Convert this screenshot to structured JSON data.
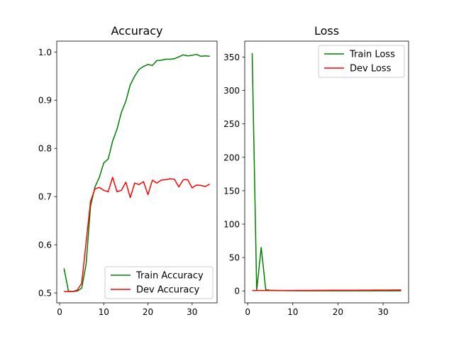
{
  "colors": {
    "train": "#008000",
    "dev": "#ff0000",
    "axis": "#000000",
    "legend_border": "#cccccc"
  },
  "chart_data": [
    {
      "type": "line",
      "title": "Accuracy",
      "xlabel": "",
      "ylabel": "",
      "xlim": [
        -0.65,
        35.65
      ],
      "ylim": [
        0.4795,
        1.0225
      ],
      "xticks": [
        0,
        10,
        20,
        30
      ],
      "yticks": [
        0.5,
        0.6,
        0.7,
        0.8,
        0.9,
        1.0
      ],
      "ytick_labels": [
        "0.5",
        "0.6",
        "0.7",
        "0.8",
        "0.9",
        "1.0"
      ],
      "grid": false,
      "legend_position": "lower-right",
      "x": [
        1,
        2,
        3,
        4,
        5,
        6,
        7,
        8,
        9,
        10,
        11,
        12,
        13,
        14,
        15,
        16,
        17,
        18,
        19,
        20,
        21,
        22,
        23,
        24,
        25,
        26,
        27,
        28,
        29,
        30,
        31,
        32,
        33,
        34
      ],
      "series": [
        {
          "name": "Train Accuracy",
          "color_key": "train",
          "values": [
            0.551,
            0.504,
            0.503,
            0.504,
            0.51,
            0.56,
            0.68,
            0.72,
            0.74,
            0.77,
            0.778,
            0.815,
            0.84,
            0.875,
            0.898,
            0.932,
            0.95,
            0.964,
            0.97,
            0.974,
            0.972,
            0.982,
            0.983,
            0.985,
            0.985,
            0.986,
            0.99,
            0.994,
            0.992,
            0.993,
            0.995,
            0.991,
            0.992,
            0.991
          ]
        },
        {
          "name": "Dev Accuracy",
          "color_key": "dev",
          "values": [
            0.503,
            0.503,
            0.503,
            0.506,
            0.52,
            0.605,
            0.69,
            0.716,
            0.719,
            0.713,
            0.71,
            0.74,
            0.71,
            0.713,
            0.73,
            0.698,
            0.728,
            0.725,
            0.731,
            0.704,
            0.734,
            0.728,
            0.734,
            0.735,
            0.737,
            0.736,
            0.72,
            0.735,
            0.735,
            0.718,
            0.724,
            0.723,
            0.721,
            0.726
          ]
        }
      ]
    },
    {
      "type": "line",
      "title": "Loss",
      "xlabel": "",
      "ylabel": "",
      "xlim": [
        -0.65,
        35.65
      ],
      "ylim": [
        -17.8,
        373.8
      ],
      "xticks": [
        0,
        10,
        20,
        30
      ],
      "yticks": [
        0,
        50,
        100,
        150,
        200,
        250,
        300,
        350
      ],
      "ytick_labels": [
        "0",
        "50",
        "100",
        "150",
        "200",
        "250",
        "300",
        "350"
      ],
      "grid": false,
      "legend_position": "top-right",
      "x": [
        1,
        2,
        3,
        4,
        5,
        6,
        7,
        8,
        9,
        10,
        11,
        12,
        13,
        14,
        15,
        16,
        17,
        18,
        19,
        20,
        21,
        22,
        23,
        24,
        25,
        26,
        27,
        28,
        29,
        30,
        31,
        32,
        33,
        34
      ],
      "series": [
        {
          "name": "Train Loss",
          "color_key": "train",
          "values": [
            356,
            1,
            65,
            2,
            1,
            0.8,
            0.6,
            0.5,
            0.4,
            0.4,
            0.3,
            0.3,
            0.3,
            0.3,
            0.2,
            0.2,
            0.2,
            0.2,
            0.2,
            0.2,
            0.2,
            0.2,
            0.2,
            0.2,
            0.2,
            0.2,
            0.2,
            0.2,
            0.2,
            0.2,
            0.2,
            0.2,
            0.2,
            0.2
          ]
        },
        {
          "name": "Dev Loss",
          "color_key": "dev",
          "values": [
            0.7,
            0.7,
            0.7,
            0.7,
            0.7,
            0.7,
            0.7,
            0.7,
            0.7,
            0.7,
            0.8,
            0.8,
            0.8,
            0.8,
            0.9,
            0.9,
            0.9,
            1.0,
            1.0,
            1.0,
            1.0,
            1.1,
            1.1,
            1.1,
            1.2,
            1.2,
            1.2,
            1.3,
            1.3,
            1.3,
            1.3,
            1.4,
            1.4,
            1.5
          ]
        }
      ]
    }
  ]
}
